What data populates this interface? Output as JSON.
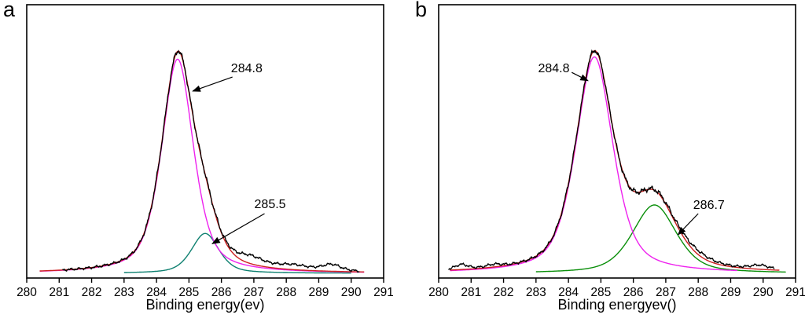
{
  "figure": {
    "background": "#ffffff",
    "axis_color": "#000000"
  },
  "chart_data": [
    {
      "type": "line",
      "panel_label": "a",
      "xlabel": "Binding energy(ev)",
      "xlim": [
        280,
        291
      ],
      "ylim": [
        0,
        1.15
      ],
      "x_ticks": [
        280,
        281,
        282,
        283,
        284,
        285,
        286,
        287,
        288,
        289,
        290,
        291
      ],
      "grid": false,
      "legend": "none",
      "axis_color": "#000000",
      "series": [
        {
          "name": "raw-data",
          "role": "raw",
          "color": "#000000",
          "x_range": [
            281.1,
            290.25
          ]
        },
        {
          "name": "fit-envelope",
          "role": "envelope",
          "color": "#cc2020",
          "x_range": [
            280.4,
            290.4
          ]
        },
        {
          "name": "component-284.8",
          "role": "component",
          "color": "#ee22ee",
          "x_range": [
            280.4,
            290.4
          ],
          "peak": {
            "center": 284.65,
            "amplitude": 0.94,
            "hwhm": 0.58,
            "eta": 0.55
          }
        },
        {
          "name": "component-285.5",
          "role": "component",
          "color": "#0e8070",
          "x_range": [
            283.0,
            290.0
          ],
          "peak": {
            "center": 285.5,
            "amplitude": 0.175,
            "hwhm": 0.5,
            "eta": 0.5
          }
        }
      ],
      "raw_extra_bumps": [
        {
          "center": 286.9,
          "amplitude": 0.035,
          "hwhm": 0.5
        },
        {
          "center": 288.2,
          "amplitude": 0.02,
          "hwhm": 0.6
        },
        {
          "center": 289.4,
          "amplitude": 0.028,
          "hwhm": 0.35
        }
      ],
      "noise": {
        "amplitude": 0.012,
        "phase": 0.0
      },
      "annotations": [
        {
          "label": "284.8",
          "text_x": 286.78,
          "text_y": 0.9,
          "arrow": {
            "x1": 286.34,
            "y1": 0.862,
            "x2": 285.12,
            "y2": 0.8
          }
        },
        {
          "label": "285.5",
          "text_x": 287.5,
          "text_y": 0.303,
          "arrow": {
            "x1": 287.33,
            "y1": 0.262,
            "x2": 285.72,
            "y2": 0.13
          }
        }
      ]
    },
    {
      "type": "line",
      "panel_label": "b",
      "xlabel": "Binding energyev()",
      "xlim": [
        280,
        291
      ],
      "ylim": [
        0,
        1.15
      ],
      "x_ticks": [
        280,
        281,
        282,
        283,
        284,
        285,
        286,
        287,
        288,
        289,
        290,
        291
      ],
      "grid": false,
      "legend": "none",
      "axis_color": "#000000",
      "series": [
        {
          "name": "raw-data",
          "role": "raw",
          "color": "#000000",
          "x_range": [
            280.3,
            290.35
          ]
        },
        {
          "name": "fit-envelope",
          "role": "envelope",
          "color": "#cc2020",
          "x_range": [
            280.35,
            290.5
          ]
        },
        {
          "name": "component-284.8",
          "role": "component",
          "color": "#ee22ee",
          "x_range": [
            280.35,
            289.2
          ],
          "peak": {
            "center": 284.8,
            "amplitude": 0.95,
            "hwhm": 0.68,
            "eta": 0.55
          }
        },
        {
          "name": "component-286.7",
          "role": "component",
          "color": "#0a8f0a",
          "x_range": [
            283.0,
            290.7
          ],
          "peak": {
            "center": 286.65,
            "amplitude": 0.3,
            "hwhm": 0.8,
            "eta": 0.5
          }
        }
      ],
      "raw_extra_bumps": [
        {
          "center": 280.7,
          "amplitude": 0.022,
          "hwhm": 0.25
        },
        {
          "center": 281.7,
          "amplitude": 0.012,
          "hwhm": 0.3
        },
        {
          "center": 287.9,
          "amplitude": 0.018,
          "hwhm": 0.7
        },
        {
          "center": 289.9,
          "amplitude": 0.018,
          "hwhm": 0.35
        }
      ],
      "noise": {
        "amplitude": 0.012,
        "phase": 2.3
      },
      "annotations": [
        {
          "label": "284.8",
          "text_x": 283.55,
          "text_y": 0.9,
          "arrow": {
            "x1": 284.1,
            "y1": 0.882,
            "x2": 284.6,
            "y2": 0.846
          }
        },
        {
          "label": "286.7",
          "text_x": 288.33,
          "text_y": 0.3,
          "arrow": {
            "x1": 288.0,
            "y1": 0.262,
            "x2": 287.38,
            "y2": 0.17
          }
        }
      ]
    }
  ]
}
